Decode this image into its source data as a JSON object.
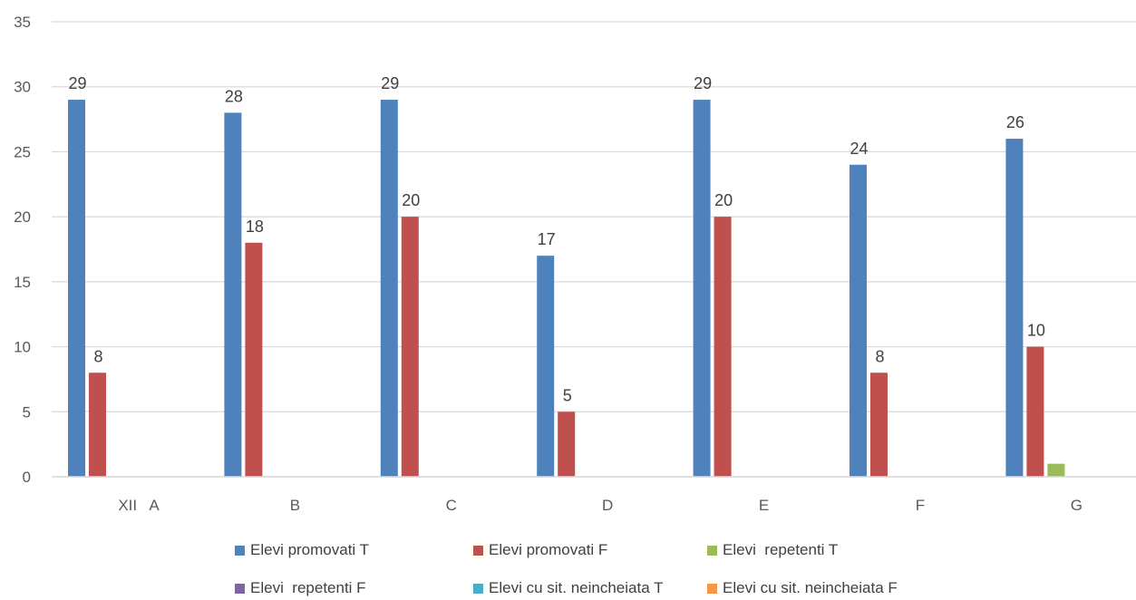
{
  "chart_data": {
    "type": "bar",
    "categories": [
      "XII   A",
      "B",
      "C",
      "D",
      "E",
      "F",
      "G"
    ],
    "series": [
      {
        "name": "Elevi promovati T",
        "color": "#4F81BD",
        "values": [
          29,
          28,
          29,
          17,
          29,
          24,
          26
        ],
        "data_labels": true
      },
      {
        "name": "Elevi promovati F",
        "color": "#C0504D",
        "values": [
          8,
          18,
          20,
          5,
          20,
          8,
          10
        ],
        "data_labels": true
      },
      {
        "name": "Elevi  repetenti T",
        "color": "#9BBB59",
        "values": [
          0,
          0,
          0,
          0,
          0,
          0,
          1
        ],
        "data_labels": false
      },
      {
        "name": "Elevi  repetenti F",
        "color": "#8064A2",
        "values": [
          0,
          0,
          0,
          0,
          0,
          0,
          0
        ],
        "data_labels": false
      },
      {
        "name": "Elevi cu sit. neincheiata T",
        "color": "#4BACC6",
        "values": [
          0,
          0,
          0,
          0,
          0,
          0,
          0
        ],
        "data_labels": false
      },
      {
        "name": "Elevi cu sit. neincheiata F",
        "color": "#F79646",
        "values": [
          0,
          0,
          0,
          0,
          0,
          0,
          0
        ],
        "data_labels": false
      }
    ],
    "yticks": [
      "0",
      "5",
      "10",
      "15",
      "20",
      "25",
      "30",
      "35"
    ],
    "ylim": [
      0,
      35
    ],
    "grid": true,
    "legend_position": "bottom",
    "title": "",
    "xlabel": "",
    "ylabel": ""
  }
}
